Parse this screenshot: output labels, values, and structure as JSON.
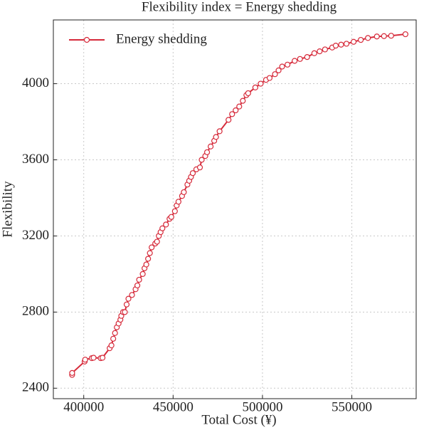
{
  "chart_data": {
    "type": "line",
    "title": "Flexibility index = Energy shedding",
    "xlabel": "Total Cost (¥)",
    "ylabel": "Flexibility",
    "xlim": [
      383000,
      586000
    ],
    "ylim": [
      2345,
      4335
    ],
    "xticks": [
      400000,
      450000,
      500000,
      550000
    ],
    "yticks": [
      2400,
      2800,
      3200,
      3600,
      4000
    ],
    "grid": true,
    "legend": "upper left",
    "series": [
      {
        "name": "Energy shedding",
        "color": "#d62a3a",
        "x": [
          393500,
          393500,
          400500,
          400800,
          404500,
          405500,
          409500,
          410500,
          414500,
          415500,
          416500,
          417500,
          418500,
          419500,
          420500,
          421000,
          422000,
          423000,
          424000,
          425000,
          427000,
          429000,
          430000,
          431000,
          433000,
          434000,
          435000,
          436000,
          437000,
          438000,
          440000,
          441000,
          442000,
          443000,
          444000,
          446000,
          448000,
          449000,
          451000,
          452000,
          453000,
          455000,
          456000,
          458000,
          459000,
          460000,
          461000,
          463000,
          465000,
          466000,
          468000,
          469000,
          471000,
          473000,
          474000,
          476000,
          481000,
          483000,
          485000,
          487000,
          489000,
          491000,
          492000,
          496000,
          499000,
          502000,
          504000,
          507000,
          509000,
          511000,
          514000,
          518000,
          521000,
          525000,
          529000,
          532000,
          535000,
          539000,
          541000,
          544000,
          547000,
          551000,
          555000,
          559000,
          564000,
          568000,
          572000,
          580000
        ],
        "values": [
          2470,
          2480,
          2540,
          2550,
          2558,
          2560,
          2558,
          2560,
          2610,
          2625,
          2660,
          2690,
          2720,
          2740,
          2760,
          2780,
          2800,
          2800,
          2840,
          2870,
          2890,
          2920,
          2940,
          2970,
          3000,
          3030,
          3050,
          3080,
          3110,
          3140,
          3160,
          3170,
          3200,
          3220,
          3240,
          3260,
          3290,
          3300,
          3330,
          3360,
          3380,
          3410,
          3430,
          3470,
          3490,
          3510,
          3530,
          3550,
          3560,
          3600,
          3620,
          3640,
          3670,
          3700,
          3720,
          3750,
          3810,
          3840,
          3860,
          3880,
          3910,
          3940,
          3950,
          3980,
          4000,
          4020,
          4030,
          4050,
          4070,
          4090,
          4100,
          4120,
          4130,
          4140,
          4160,
          4170,
          4180,
          4190,
          4200,
          4205,
          4210,
          4220,
          4230,
          4240,
          4248,
          4250,
          4252,
          4260
        ]
      }
    ]
  }
}
